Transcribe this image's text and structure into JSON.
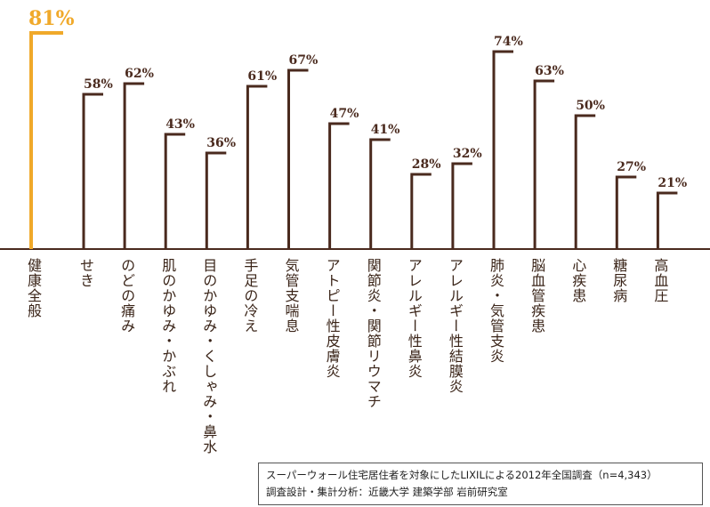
{
  "chart_data": {
    "type": "bar",
    "categories": [
      "健康全般",
      "せき",
      "のどの痛み",
      "肌のかゆみ・かぶれ",
      "目のかゆみ・くしゃみ・鼻水",
      "手足の冷え",
      "気管支喘息",
      "アトピー性皮膚炎",
      "関節炎・関節リウマチ",
      "アレルギー性鼻炎",
      "アレルギー性結膜炎",
      "肺炎・気管支炎",
      "脳血管疾患",
      "心疾患",
      "糖尿病",
      "高血圧"
    ],
    "values": [
      81,
      58,
      62,
      43,
      36,
      61,
      67,
      47,
      41,
      28,
      32,
      74,
      63,
      50,
      27,
      21
    ],
    "value_labels": [
      "81%",
      "58%",
      "62%",
      "43%",
      "36%",
      "61%",
      "67%",
      "47%",
      "41%",
      "28%",
      "32%",
      "74%",
      "63%",
      "50%",
      "27%",
      "21%"
    ],
    "colors": [
      "#f0a92a",
      "#4a2a1e",
      "#4a2a1e",
      "#4a2a1e",
      "#4a2a1e",
      "#4a2a1e",
      "#4a2a1e",
      "#4a2a1e",
      "#4a2a1e",
      "#4a2a1e",
      "#4a2a1e",
      "#4a2a1e",
      "#4a2a1e",
      "#4a2a1e",
      "#4a2a1e",
      "#4a2a1e"
    ],
    "notes": [
      "スーパーウォール住宅居住者を対象にしたLIXILによる2012年全国調査（n=4,343）",
      "調査設計・集計分析：近畿大学 建築学部 岩前研究室"
    ]
  }
}
